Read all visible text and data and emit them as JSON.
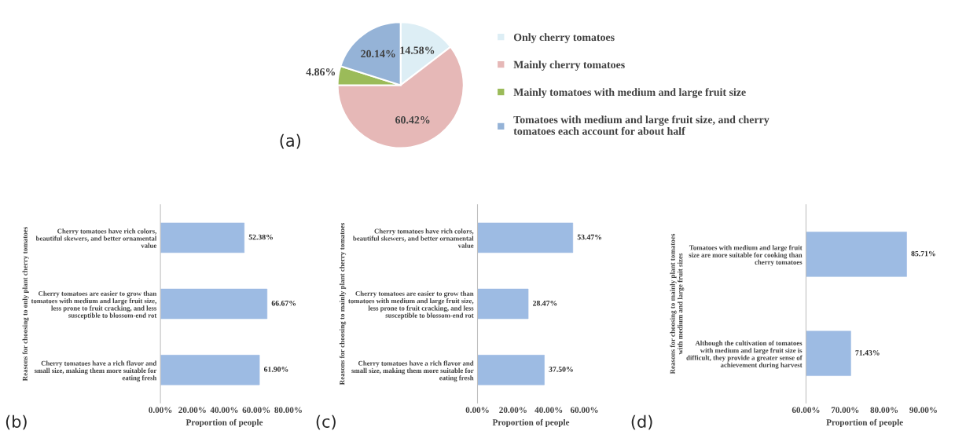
{
  "chart_data": [
    {
      "type": "pie",
      "categories": [
        "Only cherry tomatoes",
        "Mainly cherry tomatoes",
        "Mainly tomatoes with medium and large fruit size",
        "Tomatoes with medium and large fruit size, and cherry\ntomatoes each account for about half"
      ],
      "values": [
        14.58,
        60.42,
        4.86,
        20.14
      ],
      "colors": [
        "#ddeef5",
        "#e6b8b7",
        "#9bbb59",
        "#95b3d7"
      ],
      "value_labels": [
        "14.58%",
        "60.42%",
        "4.86%",
        "20.14%"
      ],
      "legend": "right",
      "annotations": [
        "(a)"
      ]
    },
    {
      "type": "bar",
      "orientation": "horizontal",
      "categories": [
        "Cherry tomatoes have rich colors,\nbeautiful skewers, and better ornamental\nvalue",
        "Cherry tomatoes are easier to grow than\ntomatoes with medium and large fruit size,\nless prone to fruit cracking, and less\nsusceptible to blossom-end rot",
        "Cherry tomatoes have a rich flavor and\nsmall size, making them more suitable for\neating fresh"
      ],
      "values": [
        52.38,
        66.67,
        61.9
      ],
      "value_labels": [
        "52.38%",
        "66.67%",
        "61.90%"
      ],
      "color": "#9dbbe3",
      "xlim": [
        0,
        80
      ],
      "xticks": [
        {
          "value": 0,
          "label": "0.00%"
        },
        {
          "value": 20,
          "label": "20.00%"
        },
        {
          "value": 40,
          "label": "40.00%"
        },
        {
          "value": 60,
          "label": "60.00%"
        },
        {
          "value": 80,
          "label": "80.00%"
        }
      ],
      "xlabel": "Proportion of people",
      "ylabel": "Reasons for choosing to only plant cherry tomatoes",
      "grid": false,
      "annotations": [
        "(b)"
      ]
    },
    {
      "type": "bar",
      "orientation": "horizontal",
      "categories": [
        "Cherry tomatoes have rich colors,\nbeautiful skewers, and better ornamental\nvalue",
        "Cherry tomatoes are easier to grow than\ntomatoes with medium and large fruit size,\nless prone to fruit cracking, and less\nsusceptible to blossom-end rot",
        "Cherry tomatoes have a rich flavor and\nsmall size, making them more suitable for\neating fresh"
      ],
      "values": [
        53.47,
        28.47,
        37.5
      ],
      "value_labels": [
        "53.47%",
        "28.47%",
        "37.50%"
      ],
      "color": "#9dbbe3",
      "xlim": [
        0,
        60
      ],
      "xticks": [
        {
          "value": 0,
          "label": "0.00%"
        },
        {
          "value": 20,
          "label": "20.00%"
        },
        {
          "value": 40,
          "label": "40.00%"
        },
        {
          "value": 60,
          "label": "60.00%"
        }
      ],
      "xlabel": "Proportion of people",
      "ylabel": "Reasons for choosing to mainly plant cherry tomatoes",
      "grid": false,
      "annotations": [
        "(c)"
      ]
    },
    {
      "type": "bar",
      "orientation": "horizontal",
      "categories": [
        "Tomatoes with medium and large fruit\nsize are more suitable for cooking than\ncherry tomatoes",
        "Although the cultivation of tomatoes\nwith medium and large fruit size is\ndifficult, they provide a greater sense of\nachievement during harvest"
      ],
      "values": [
        85.71,
        71.43
      ],
      "value_labels": [
        "85.71%",
        "71.43%"
      ],
      "color": "#9dbbe3",
      "xlim": [
        60,
        90
      ],
      "xticks": [
        {
          "value": 60,
          "label": "60.00%"
        },
        {
          "value": 70,
          "label": "70.00%"
        },
        {
          "value": 80,
          "label": "80.00%"
        },
        {
          "value": 90,
          "label": "90.00%"
        }
      ],
      "xlabel": "Proportion of people",
      "ylabel": "Reasons for choosing to mainly plant tomatoes\nwith medium and large fruit sizes",
      "grid": false,
      "annotations": [
        "(d)"
      ]
    }
  ]
}
